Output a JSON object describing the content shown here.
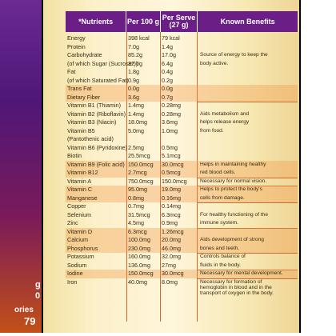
{
  "header": {
    "nutrients": "*Nutrients",
    "per100g": "Per 100 g",
    "perserve": "Per Serve (27 g)",
    "benefits": "Known Benefits"
  },
  "side": {
    "g": "g",
    "zero": "0",
    "calories": "ories",
    "num": "79"
  },
  "rows": [
    {
      "n": "Energy",
      "a": "398 kcal",
      "b": "79 kcal",
      "k": ""
    },
    {
      "n": "Protein",
      "a": "7.0g",
      "b": "1.4g",
      "k": ""
    },
    {
      "n": "Carbohydrate",
      "a": "85.2g",
      "b": "17.0g",
      "k": "Source of energy to keep the"
    },
    {
      "n": "(of which Sugar (Sucrose*))",
      "a": "32.0g",
      "b": "6.4g",
      "k": "body active."
    },
    {
      "n": "Fat",
      "a": "1.8g",
      "b": "0.4g",
      "k": ""
    },
    {
      "n": "(of which Saturated Fat)",
      "a": "0.9g",
      "b": "0.2g",
      "k": ""
    },
    {
      "n": "Trans Fat",
      "a": "0.0g",
      "b": "0.0g",
      "k": ""
    },
    {
      "n": "Dietary Fiber",
      "a": "3.6g",
      "b": "0.7g",
      "k": ""
    },
    {
      "n": "Vitamin B1 (Thiamin)",
      "a": "1.4mg",
      "b": "0.28mg",
      "k": ""
    },
    {
      "n": "Vitamin B2 (Riboflavin)",
      "a": "1.4mg",
      "b": "0.28mg",
      "k": "Aids metabolism and"
    },
    {
      "n": "Vitamin B3 (Niacin)",
      "a": "18.0mg",
      "b": "3.6mg",
      "k": "helps release energy"
    },
    {
      "n": "Vitamin B5",
      "a": "5.0mg",
      "b": "1.0mg",
      "k": "from food."
    },
    {
      "n": "(Pantothenic acid)",
      "a": "",
      "b": "",
      "k": ""
    },
    {
      "n": "Vitamin B6 (Pyridoxine)",
      "a": "2.5mg",
      "b": "0.5mg",
      "k": ""
    },
    {
      "n": "Biotin",
      "a": "25.5mcg",
      "b": "5.1mcg",
      "k": ""
    },
    {
      "n": "Vitamin B9 (Folic acid)",
      "a": "150.0mcg",
      "b": "30.0mcg",
      "k": "Helps in maintaining healthy"
    },
    {
      "n": "Vitamin B12",
      "a": "2.7mcg",
      "b": "0.5mcg",
      "k": "red blood cells."
    },
    {
      "n": "Vitamin A",
      "a": "750.0mcg",
      "b": "150.0mcg",
      "k": "Necessary for normal vision."
    },
    {
      "n": "Vitamin C",
      "a": "95.0mg",
      "b": "19.0mg",
      "k": "Helps to protect the body's"
    },
    {
      "n": "Manganese",
      "a": "0.8mg",
      "b": "0.16mg",
      "k": "cells from damage."
    },
    {
      "n": "Copper",
      "a": "0.7mg",
      "b": "0.14mg",
      "k": ""
    },
    {
      "n": "Selenium",
      "a": "31.5mcg",
      "b": "6.3mcg",
      "k": "For healthy functioning of the"
    },
    {
      "n": "Zinc",
      "a": "4.5mg",
      "b": "0.9mg",
      "k": "immune system."
    },
    {
      "n": "Vitamin D",
      "a": "6.3mcg",
      "b": "1.26mcg",
      "k": ""
    },
    {
      "n": "Calcium",
      "a": "100.0mg",
      "b": "20.0mg",
      "k": "Aids development of strong"
    },
    {
      "n": "Phosphorus",
      "a": "230.0mg",
      "b": "46.0mg",
      "k": "bones and teeth."
    },
    {
      "n": "Potassium",
      "a": "160.0mg",
      "b": "32.0mg",
      "k": "Controls balance of"
    },
    {
      "n": "Sodium",
      "a": "136.0mg",
      "b": "27mg",
      "k": "fluids in the body."
    },
    {
      "n": "Iodine",
      "a": "150.0mcg",
      "b": "30.0mcg",
      "k": "Necessary for mental development."
    },
    {
      "n": "Iron",
      "a": "40.0mg",
      "b": "8.0mg",
      "k": "Necessary for formation of hemoglobin in blood and in the transport of oxygen in the body."
    }
  ]
}
